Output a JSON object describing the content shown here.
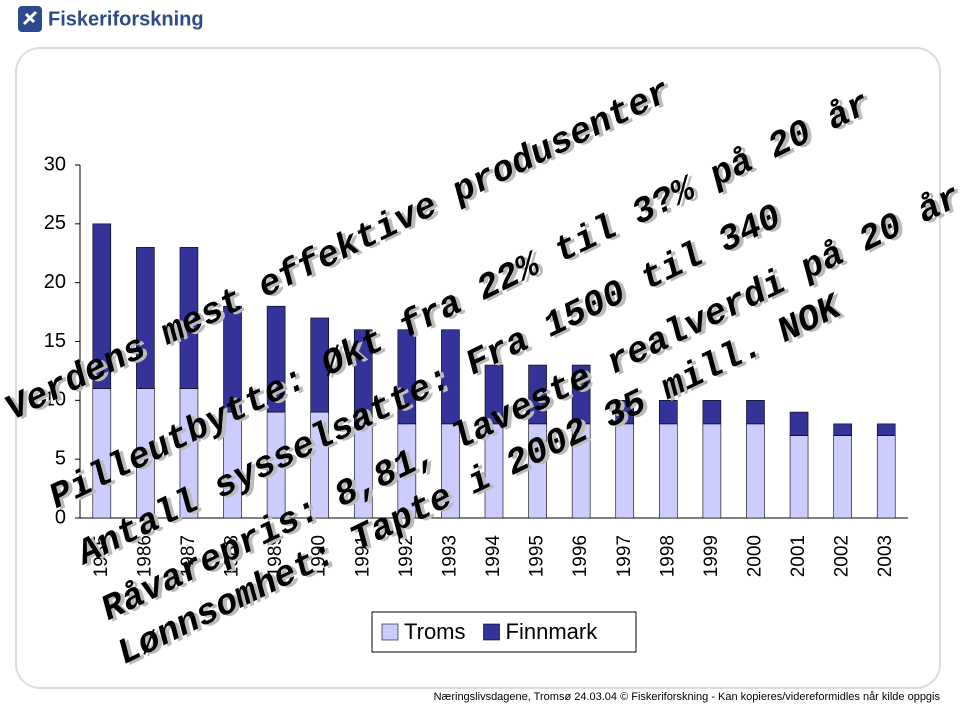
{
  "logo": "Fiskeriforskning",
  "chart_data": {
    "type": "stacked-bar",
    "categories": [
      "1985",
      "1986",
      "1987",
      "1988",
      "1989",
      "1990",
      "1991",
      "1992",
      "1993",
      "1994",
      "1995",
      "1996",
      "1997",
      "1998",
      "1999",
      "2000",
      "2001",
      "2002",
      "2003"
    ],
    "series": [
      {
        "name": "Troms",
        "color": "#ccccff",
        "values": [
          11,
          11,
          11,
          9,
          9,
          9,
          8,
          8,
          8,
          8,
          8,
          8,
          8,
          8,
          8,
          8,
          7,
          7,
          7
        ]
      },
      {
        "name": "Finnmark",
        "color": "#333399",
        "values": [
          14,
          12,
          12,
          9,
          9,
          8,
          8,
          8,
          8,
          5,
          5,
          5,
          2,
          2,
          2,
          2,
          2,
          1,
          1
        ]
      }
    ],
    "ylim": [
      0,
      30
    ],
    "yticks": [
      0,
      5,
      10,
      15,
      20,
      25,
      30
    ],
    "grid": false,
    "legend": "bottom"
  },
  "overlay_text": [
    "Verdens mest effektive produsenter",
    "Pilleutbytte: Økt fra 22% til 3?% på 20 år",
    "Antall sysselsatte: Fra 1500 til 340",
    "Råvarepris: 8,81, laveste realverdi på 20 år",
    "Lønnsomhet: Tapte i 2002 35 mill. NOK"
  ],
  "footer": "Næringslivsdagene, Tromsø 24.03.04 © Fiskeriforskning - Kan kopieres/videreformidles når kilde oppgis"
}
